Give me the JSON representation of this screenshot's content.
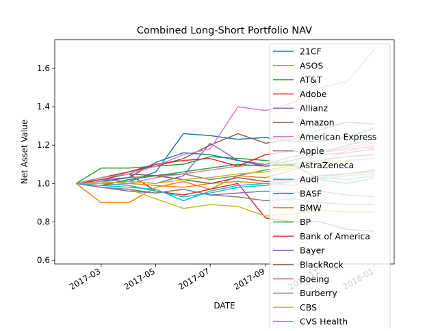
{
  "chart_data": {
    "type": "line",
    "title": "Combined Long-Short Portfolio NAV",
    "xlabel": "DATE",
    "ylabel": "Net Asset Value",
    "x_ticks": [
      "2017-03",
      "2017-05",
      "2017-07",
      "2017-09",
      "2017-11",
      "2018-01"
    ],
    "x_tick_dates": [
      "2017-03-01",
      "2017-05-01",
      "2017-07-01",
      "2017-09-01",
      "2017-11-01",
      "2018-01-01"
    ],
    "xlim": [
      "2017-01-08",
      "2018-01-23"
    ],
    "y_ticks": [
      "0.6",
      "0.8",
      "1.0",
      "1.2",
      "1.4",
      "1.6"
    ],
    "ylim": [
      0.58,
      1.75
    ],
    "x": [
      "2017-02-01",
      "2017-03-01",
      "2017-04-01",
      "2017-05-01",
      "2017-06-01",
      "2017-07-01",
      "2017-08-01",
      "2017-09-01",
      "2017-10-01",
      "2017-11-01",
      "2017-12-01",
      "2018-01-01"
    ],
    "grid": false,
    "legend_position": "top-right",
    "series": [
      {
        "name": "21CF",
        "color": "#1f77b4",
        "values": [
          1.0,
          1.0,
          1.01,
          1.06,
          1.26,
          1.25,
          1.23,
          1.24,
          1.22,
          1.22,
          1.24,
          1.29
        ]
      },
      {
        "name": "ASOS",
        "color": "#ff7f0e",
        "values": [
          1.0,
          0.9,
          0.9,
          0.98,
          1.01,
          0.97,
          1.04,
          1.03,
          1.07,
          1.11,
          1.17,
          1.2
        ]
      },
      {
        "name": "AT&T",
        "color": "#2ca02c",
        "values": [
          1.0,
          1.08,
          1.08,
          1.09,
          1.1,
          1.14,
          1.13,
          1.12,
          1.1,
          1.02,
          1.0,
          1.03
        ]
      },
      {
        "name": "Adobe",
        "color": "#d62728",
        "values": [
          1.0,
          1.02,
          1.05,
          0.96,
          0.94,
          0.97,
          1.0,
          0.82,
          0.8,
          0.8,
          0.76,
          0.75
        ]
      },
      {
        "name": "Allianz",
        "color": "#9467bd",
        "values": [
          1.0,
          1.02,
          1.01,
          1.0,
          1.04,
          1.21,
          1.12,
          1.1,
          1.14,
          1.16,
          1.18,
          1.19
        ]
      },
      {
        "name": "Amazon",
        "color": "#8c564b",
        "values": [
          1.0,
          1.03,
          1.06,
          1.09,
          1.13,
          1.2,
          1.26,
          1.21,
          1.23,
          1.28,
          1.32,
          1.31
        ]
      },
      {
        "name": "American Express",
        "color": "#e377c2",
        "values": [
          1.0,
          0.99,
          1.0,
          1.03,
          1.05,
          1.07,
          1.09,
          1.1,
          1.12,
          1.16,
          1.19,
          1.21
        ]
      },
      {
        "name": "Apple",
        "color": "#7f7f7f",
        "values": [
          1.0,
          1.02,
          1.03,
          1.04,
          1.05,
          1.02,
          1.04,
          1.07,
          1.09,
          1.1,
          1.12,
          1.13
        ]
      },
      {
        "name": "AstraZeneca",
        "color": "#bcbd22",
        "values": [
          1.0,
          0.98,
          0.97,
          0.92,
          0.87,
          0.89,
          0.88,
          0.83,
          0.84,
          0.86,
          0.85,
          0.85
        ]
      },
      {
        "name": "Audi",
        "color": "#17becf",
        "values": [
          1.0,
          1.0,
          0.99,
          0.96,
          0.93,
          0.95,
          0.98,
          0.99,
          1.01,
          1.03,
          1.05,
          1.06
        ]
      },
      {
        "name": "BASF",
        "color": "#1f77b4",
        "values": [
          1.0,
          1.01,
          1.03,
          1.11,
          1.16,
          1.15,
          1.12,
          1.09,
          1.1,
          1.12,
          1.14,
          1.15
        ]
      },
      {
        "name": "BMW",
        "color": "#ff7f0e",
        "values": [
          1.0,
          1.01,
          1.0,
          0.99,
          0.98,
          1.0,
          1.01,
          1.0,
          0.99,
          1.02,
          1.04,
          1.05
        ]
      },
      {
        "name": "BP",
        "color": "#2ca02c",
        "values": [
          1.0,
          0.99,
          1.02,
          1.04,
          1.06,
          1.08,
          1.1,
          1.09,
          1.12,
          1.16,
          1.2,
          1.23
        ]
      },
      {
        "name": "Bank of America",
        "color": "#d62728",
        "values": [
          1.0,
          1.03,
          1.06,
          1.1,
          1.12,
          1.13,
          1.09,
          1.15,
          1.17,
          1.15,
          1.16,
          1.18
        ]
      },
      {
        "name": "Bayer",
        "color": "#9467bd",
        "values": [
          1.0,
          0.98,
          0.96,
          0.95,
          0.97,
          0.94,
          0.95,
          0.96,
          0.95,
          0.96,
          0.94,
          0.93
        ]
      },
      {
        "name": "BlackRock",
        "color": "#8c564b",
        "values": [
          1.0,
          1.02,
          1.05,
          1.04,
          1.02,
          1.0,
          1.03,
          1.01,
          1.02,
          1.04,
          1.05,
          1.07
        ]
      },
      {
        "name": "Boeing",
        "color": "#e377c2",
        "values": [
          1.0,
          1.03,
          1.05,
          1.09,
          1.15,
          1.18,
          1.4,
          1.38,
          1.42,
          1.5,
          1.53,
          1.7
        ]
      },
      {
        "name": "Burberry",
        "color": "#7f7f7f",
        "values": [
          1.0,
          0.98,
          0.97,
          0.95,
          0.97,
          0.94,
          0.93,
          0.91,
          0.92,
          0.9,
          0.89,
          0.89
        ]
      },
      {
        "name": "CBS",
        "color": "#bcbd22",
        "values": [
          1.0,
          1.0,
          1.01,
          1.0,
          1.02,
          1.03,
          1.05,
          1.06,
          1.08,
          1.1,
          1.12,
          1.13
        ]
      },
      {
        "name": "CVS Health",
        "color": "#17becf",
        "values": [
          1.0,
          0.99,
          0.98,
          0.97,
          0.91,
          0.96,
          0.99,
          1.0,
          1.01,
          1.03,
          1.02,
          1.04
        ]
      }
    ]
  }
}
